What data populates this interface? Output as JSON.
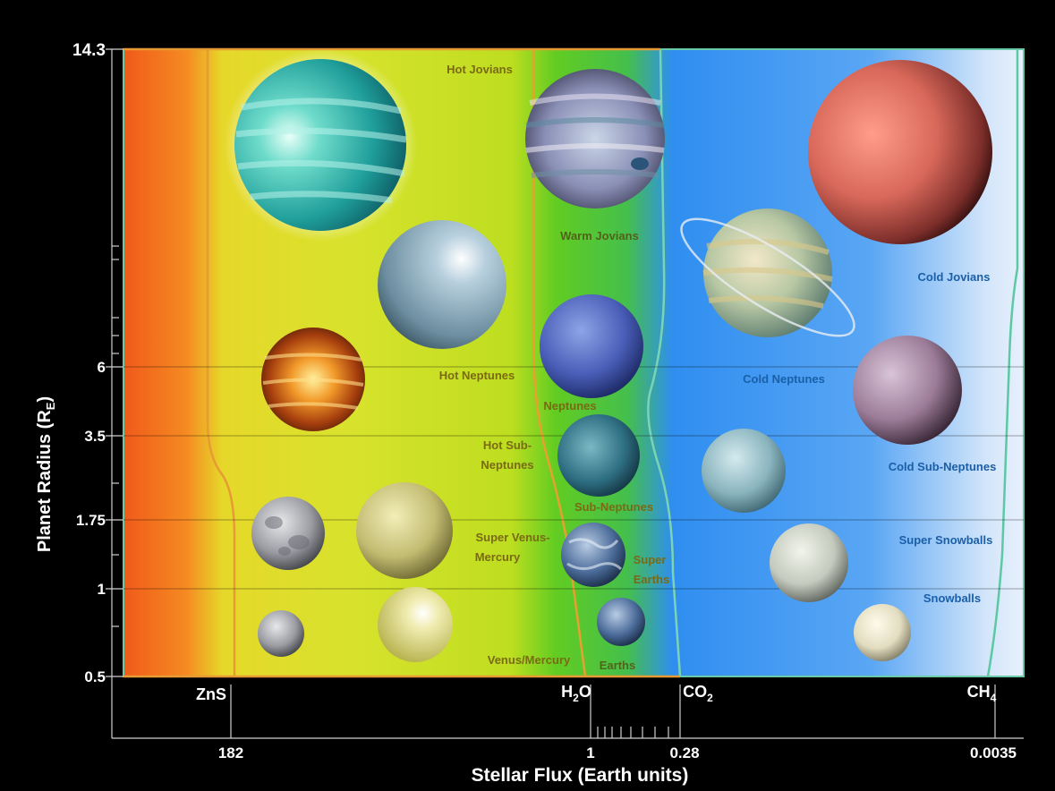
{
  "y_axis": {
    "title": "Planet Radius (R",
    "title_sub": "E",
    "title_end": ")",
    "ticks": [
      "14.3",
      "6",
      "3.5",
      "1.75",
      "1",
      "0.5"
    ]
  },
  "x_axis": {
    "title": "Stellar Flux (Earth units)",
    "ticks": [
      "182",
      "1",
      "0.28",
      "0.0035"
    ]
  },
  "condensates": [
    {
      "base": "ZnS",
      "sub": ""
    },
    {
      "base": "H",
      "sub": "2",
      "tail": "O"
    },
    {
      "base": "CO",
      "sub": "2",
      "tail": ""
    },
    {
      "base": "CH",
      "sub": "4",
      "tail": ""
    }
  ],
  "region_labels": {
    "hot_jovians": "Hot Jovians",
    "warm_jovians": "Warm Jovians",
    "cold_jovians": "Cold Jovians",
    "hot_neptunes": "Hot Neptunes",
    "neptunes": "Neptunes",
    "cold_neptunes": "Cold Neptunes",
    "hot_sub_neptunes_1": "Hot Sub-",
    "hot_sub_neptunes_2": "Neptunes",
    "sub_neptunes": "Sub-Neptunes",
    "cold_sub_neptunes": "Cold Sub-Neptunes",
    "super_venus_1": "Super Venus-",
    "super_venus_2": "Mercury",
    "super_earths_1": "Super",
    "super_earths_2": "Earths",
    "super_snowballs": "Super Snowballs",
    "venus_mercury": "Venus/Mercury",
    "earths": "Earths",
    "snowballs": "Snowballs"
  },
  "colors": {
    "hot_zone": "#f05a1a",
    "warm_zone": "#c8dc20",
    "temperate_zone": "#4cc624",
    "cold_zone": "#2f8ef0",
    "frigid_zone": "#d8e8fa",
    "label_warm": "#7a6a14",
    "label_cold": "#1a5fa8"
  }
}
